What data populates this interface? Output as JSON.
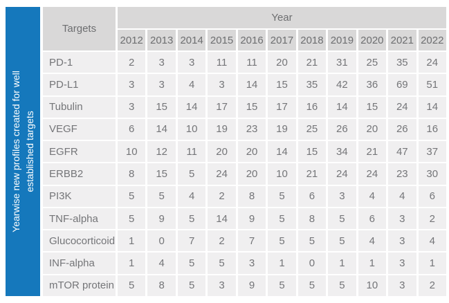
{
  "colors": {
    "accent_blue": "#1578BC",
    "header_gray": "#d9d8d8",
    "cell_gray": "#f0eff0",
    "text_gray": "#747578",
    "sidebar_text": "#ffffff"
  },
  "sidebar": {
    "label": "Yearwise new profiles created for well established targets"
  },
  "table": {
    "corner_header": "Targets",
    "year_group_header": "Year",
    "years": [
      "2012",
      "2013",
      "2014",
      "2015",
      "2016",
      "2017",
      "2018",
      "2019",
      "2020",
      "2021",
      "2022"
    ],
    "rows": [
      {
        "target": "PD-1",
        "values": [
          2,
          3,
          3,
          11,
          11,
          20,
          21,
          31,
          25,
          35,
          24
        ]
      },
      {
        "target": "PD-L1",
        "values": [
          3,
          3,
          4,
          3,
          14,
          15,
          35,
          42,
          36,
          69,
          51
        ]
      },
      {
        "target": "Tubulin",
        "values": [
          3,
          15,
          14,
          17,
          15,
          17,
          16,
          14,
          15,
          24,
          14
        ]
      },
      {
        "target": "VEGF",
        "values": [
          6,
          14,
          10,
          19,
          23,
          19,
          25,
          26,
          20,
          26,
          16
        ]
      },
      {
        "target": "EGFR",
        "values": [
          10,
          12,
          11,
          20,
          20,
          14,
          15,
          34,
          21,
          47,
          37
        ]
      },
      {
        "target": "ERBB2",
        "values": [
          8,
          15,
          5,
          24,
          20,
          10,
          21,
          24,
          24,
          23,
          30
        ]
      },
      {
        "target": "PI3K",
        "values": [
          5,
          5,
          4,
          2,
          8,
          5,
          6,
          3,
          4,
          4,
          6
        ]
      },
      {
        "target": "TNF-alpha",
        "values": [
          5,
          9,
          5,
          14,
          9,
          5,
          8,
          5,
          6,
          3,
          2
        ]
      },
      {
        "target": "Glucocorticoid",
        "values": [
          1,
          0,
          7,
          2,
          7,
          5,
          5,
          5,
          4,
          3,
          4
        ]
      },
      {
        "target": "INF-alpha",
        "values": [
          1,
          4,
          5,
          5,
          3,
          1,
          0,
          1,
          1,
          3,
          1
        ]
      },
      {
        "target": "mTOR protein",
        "values": [
          5,
          8,
          5,
          3,
          9,
          5,
          5,
          5,
          10,
          3,
          2
        ]
      }
    ]
  },
  "chart_data": {
    "type": "table",
    "title": "Yearwise new profiles created for well established targets",
    "columns": [
      "Targets",
      "2012",
      "2013",
      "2014",
      "2015",
      "2016",
      "2017",
      "2018",
      "2019",
      "2020",
      "2021",
      "2022"
    ],
    "rows": [
      [
        "PD-1",
        2,
        3,
        3,
        11,
        11,
        20,
        21,
        31,
        25,
        35,
        24
      ],
      [
        "PD-L1",
        3,
        3,
        4,
        3,
        14,
        15,
        35,
        42,
        36,
        69,
        51
      ],
      [
        "Tubulin",
        3,
        15,
        14,
        17,
        15,
        17,
        16,
        14,
        15,
        24,
        14
      ],
      [
        "VEGF",
        6,
        14,
        10,
        19,
        23,
        19,
        25,
        26,
        20,
        26,
        16
      ],
      [
        "EGFR",
        10,
        12,
        11,
        20,
        20,
        14,
        15,
        34,
        21,
        47,
        37
      ],
      [
        "ERBB2",
        8,
        15,
        5,
        24,
        20,
        10,
        21,
        24,
        24,
        23,
        30
      ],
      [
        "PI3K",
        5,
        5,
        4,
        2,
        8,
        5,
        6,
        3,
        4,
        4,
        6
      ],
      [
        "TNF-alpha",
        5,
        9,
        5,
        14,
        9,
        5,
        8,
        5,
        6,
        3,
        2
      ],
      [
        "Glucocorticoid",
        1,
        0,
        7,
        2,
        7,
        5,
        5,
        5,
        4,
        3,
        4
      ],
      [
        "INF-alpha",
        1,
        4,
        5,
        5,
        3,
        1,
        0,
        1,
        1,
        3,
        1
      ],
      [
        "mTOR protein",
        5,
        8,
        5,
        3,
        9,
        5,
        5,
        5,
        10,
        3,
        2
      ]
    ]
  }
}
